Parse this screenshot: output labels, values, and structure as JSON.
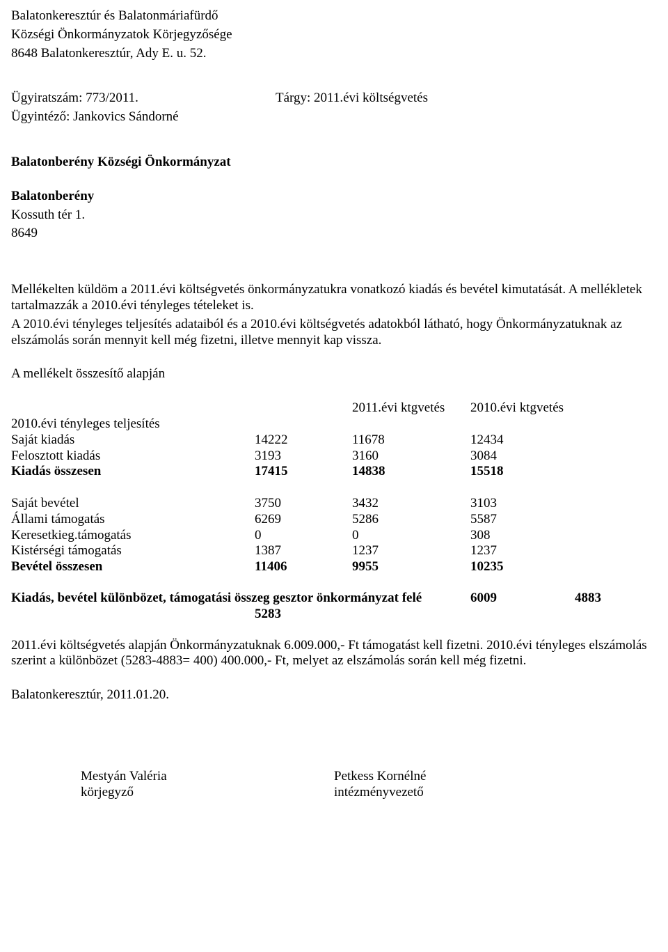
{
  "header": {
    "line1": "Balatonkeresztúr és Balatonmáriafürdő",
    "line2": "Községi Önkormányzatok Körjegyzősége",
    "line3": "8648 Balatonkeresztúr, Ady E. u. 52."
  },
  "ref": {
    "case_no_label": "Ügyiratszám: 773/2011.",
    "subject_label": "Tárgy: 2011.évi költségvetés",
    "clerk_label": "Ügyintéző: Jankovics Sándorné"
  },
  "addressee": {
    "line1": "Balatonberény Községi Önkormányzat",
    "line2": "Balatonberény",
    "line3": "Kossuth tér 1.",
    "line4": "8649"
  },
  "body": {
    "p1": "Mellékelten küldöm a 2011.évi költségvetés önkormányzatukra vonatkozó kiadás és bevétel kimutatását. A mellékletek tartalmazzák a 2010.évi tényleges tételeket is.",
    "p2": "A 2010.évi tényleges teljesítés adataiból és a 2010.évi költségvetés adatokból látható, hogy Önkormányzatuknak az elszámolás során mennyit kell még fizetni, illetve mennyit kap vissza.",
    "p3": "A mellékelt összesítő alapján"
  },
  "table": {
    "head_col_b": "2011.évi ktgvetés",
    "head_col_c": "2010.évi ktgvetés",
    "row_pre_label": "2010.évi tényleges teljesítés",
    "rows_exp": [
      {
        "label": "Saját kiadás",
        "a": "14222",
        "b": "11678",
        "c": "12434",
        "bold": false
      },
      {
        "label": "Felosztott kiadás",
        "a": "3193",
        "b": "3160",
        "c": "3084",
        "bold": false
      },
      {
        "label": "Kiadás összesen",
        "a": "17415",
        "b": "14838",
        "c": "15518",
        "bold": true
      }
    ],
    "rows_inc": [
      {
        "label": "Saját bevétel",
        "a": "3750",
        "b": "3432",
        "c": "3103",
        "bold": false
      },
      {
        "label": "Állami támogatás",
        "a": "6269",
        "b": "5286",
        "c": "5587",
        "bold": false
      },
      {
        "label": "Keresetkieg.támogatás",
        "a": "0",
        "b": "0",
        "c": "308",
        "bold": false
      },
      {
        "label": "Kistérségi támogatás",
        "a": "1387",
        "b": "1237",
        "c": "1237",
        "bold": false
      },
      {
        "label": "Bevétel összesen",
        "a": "11406",
        "b": "9955",
        "c": "10235",
        "bold": true
      }
    ],
    "diff": {
      "label": "Kiadás, bevétel különbözet, támogatási összeg gesztor önkormányzat felé",
      "v2011": "6009",
      "v2010b": "4883",
      "v2010a": "5283"
    }
  },
  "footer": {
    "p1": "2011.évi költségvetés alapján Önkormányzatuknak 6.009.000,- Ft támogatást kell fizetni. 2010.évi tényleges elszámolás szerint a különbözet (5283-4883= 400) 400.000,- Ft, melyet az elszámolás során kell még fizetni.",
    "date": "Balatonkeresztúr, 2011.01.20."
  },
  "signatures": {
    "left_name": "Mestyán Valéria",
    "left_title": "körjegyző",
    "right_name": "Petkess Kornélné",
    "right_title": "intézményvezető"
  }
}
